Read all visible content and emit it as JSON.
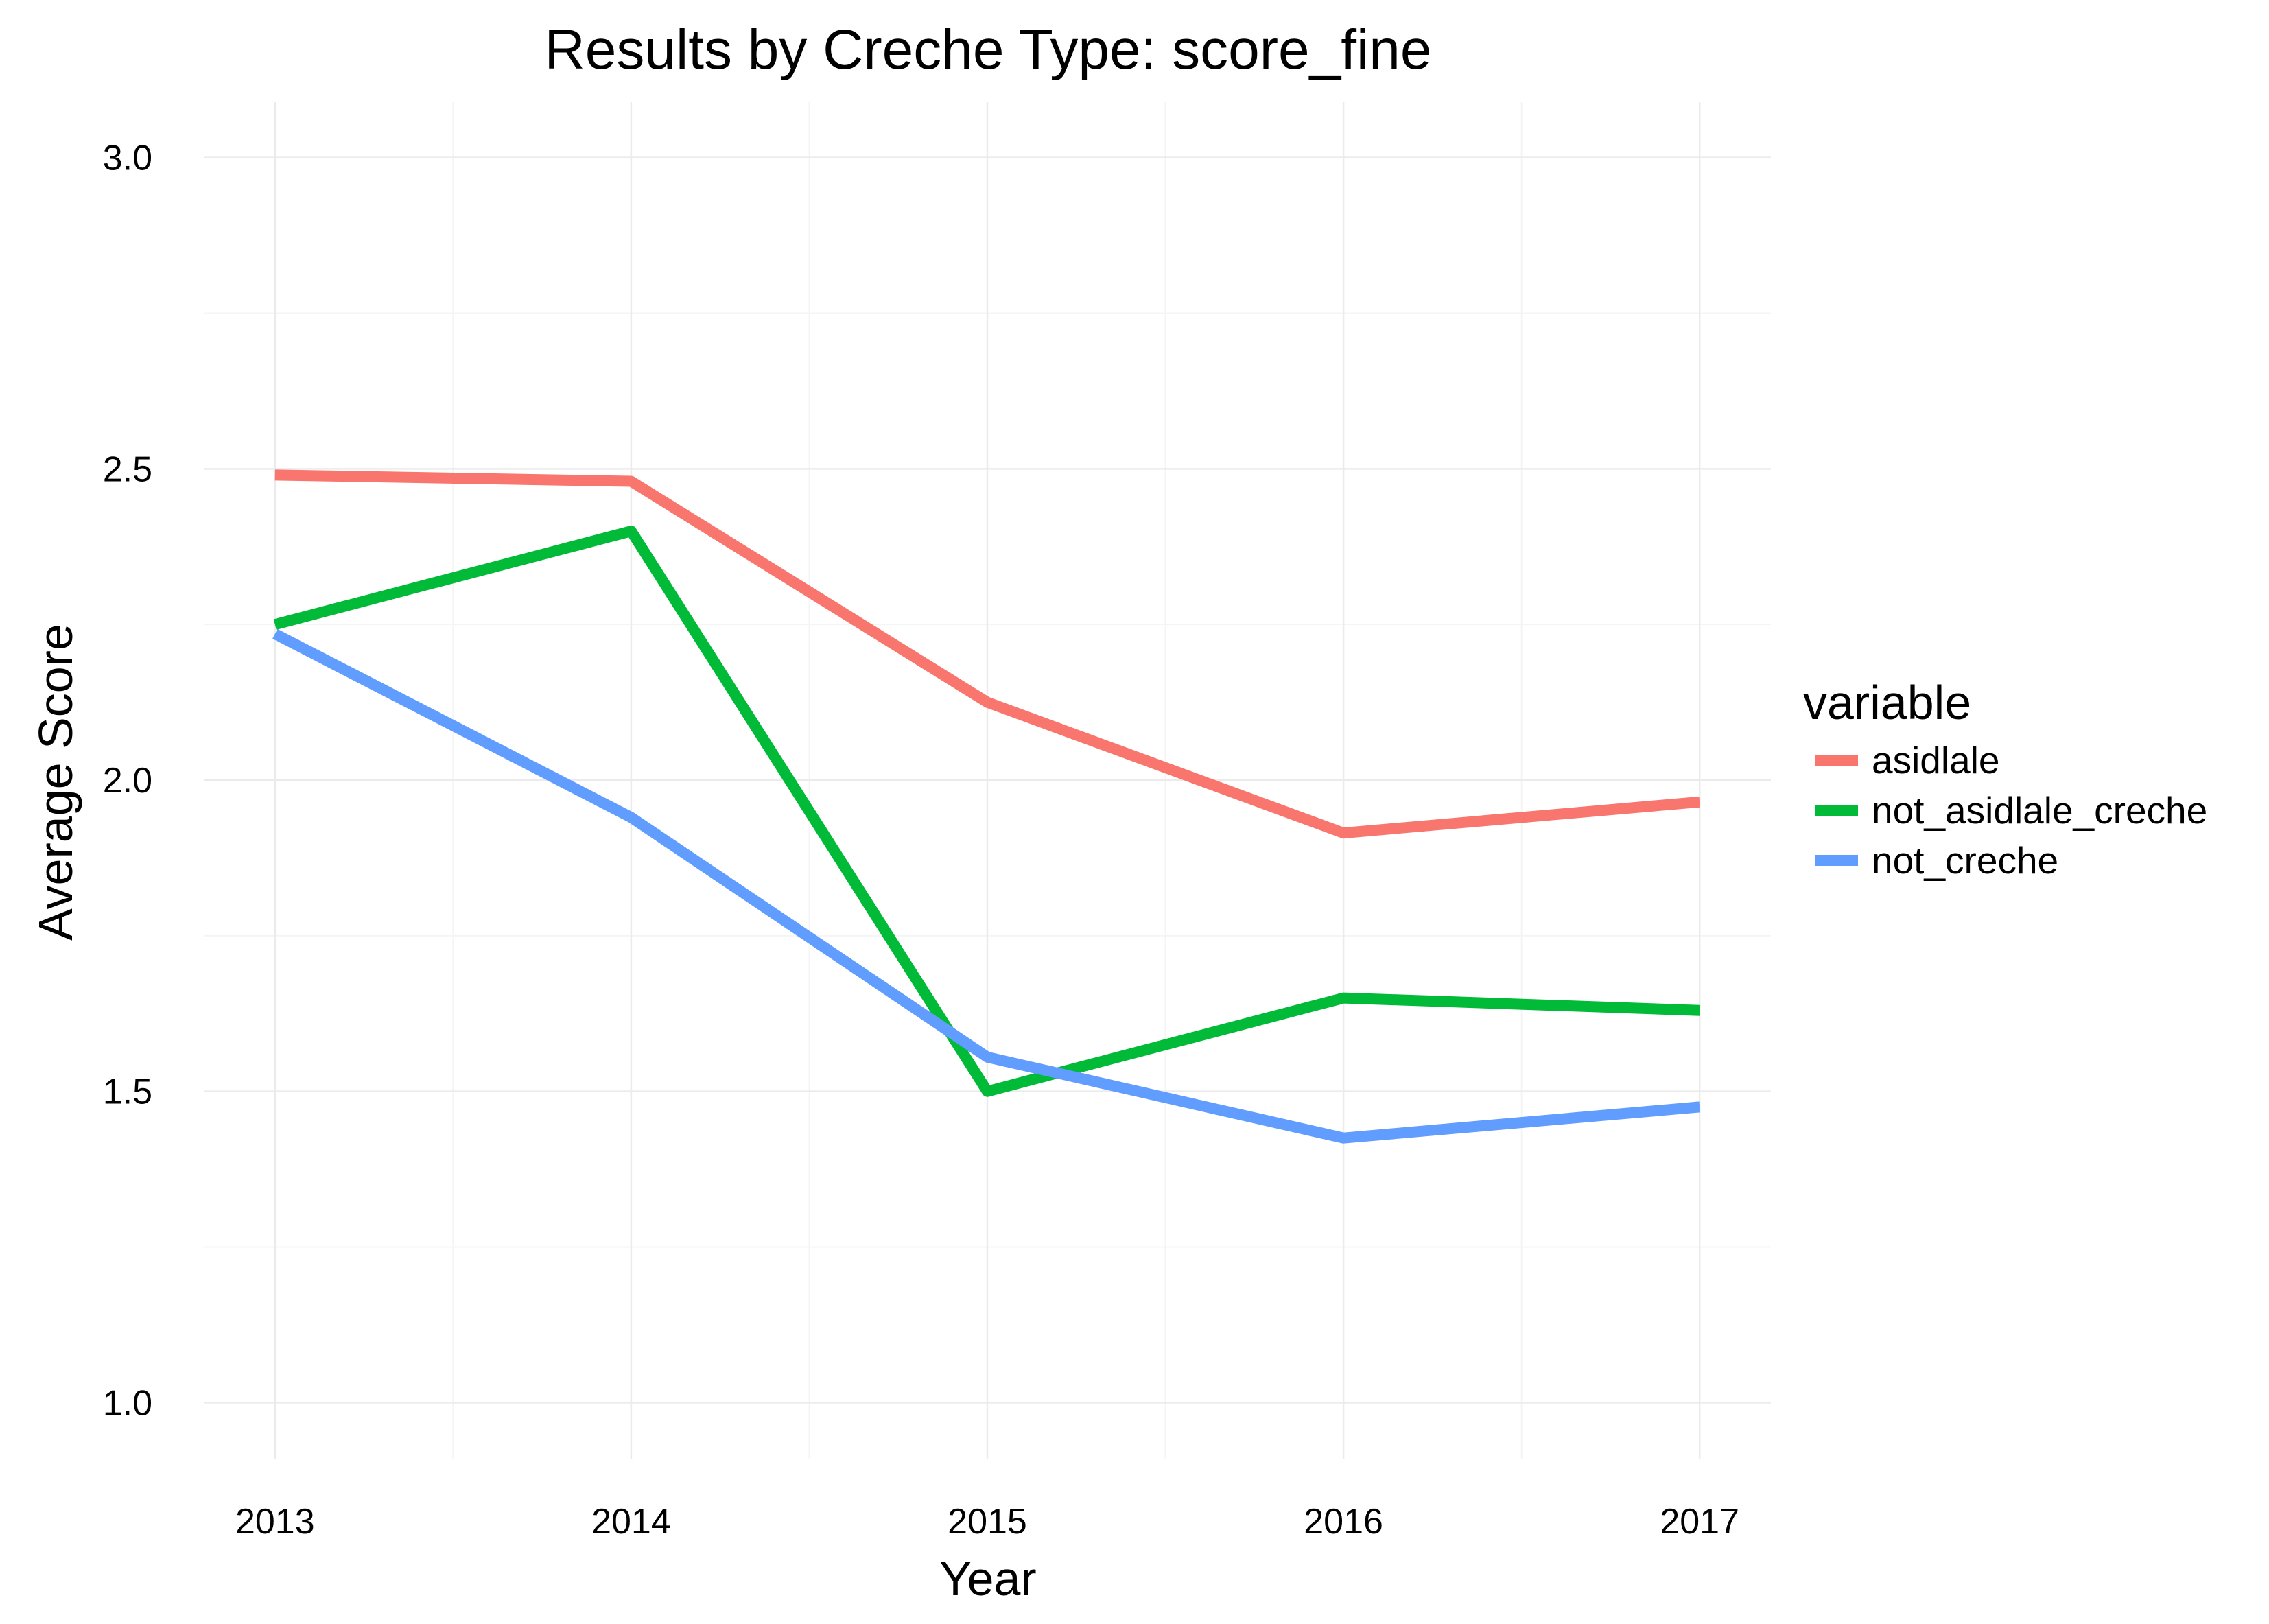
{
  "chart_data": {
    "type": "line",
    "title": "Results by Creche Type: score_fine",
    "xlabel": "Year",
    "ylabel": "Average Score",
    "x": [
      2013,
      2014,
      2015,
      2016,
      2017
    ],
    "x_tick_labels": [
      "2013",
      "2014",
      "2015",
      "2016",
      "2017"
    ],
    "xlim": [
      2012.8,
      2017.2
    ],
    "ylim": [
      0.91,
      3.09
    ],
    "y_ticks": [
      1.0,
      1.5,
      2.0,
      2.5,
      3.0
    ],
    "y_tick_labels": [
      "1.0",
      "1.5",
      "2.0",
      "2.5",
      "3.0"
    ],
    "grid": true,
    "legend": {
      "title": "variable",
      "position": "right"
    },
    "series": [
      {
        "name": "asidlale",
        "color": "#F8766D",
        "values": [
          2.49,
          2.48,
          2.125,
          1.915,
          1.965
        ]
      },
      {
        "name": "not_asidlale_creche",
        "color": "#00BA38",
        "values": [
          2.25,
          2.4,
          1.5,
          1.65,
          1.63
        ]
      },
      {
        "name": "not_creche",
        "color": "#619CFF",
        "values": [
          2.235,
          1.94,
          1.555,
          1.425,
          1.475
        ]
      }
    ]
  }
}
